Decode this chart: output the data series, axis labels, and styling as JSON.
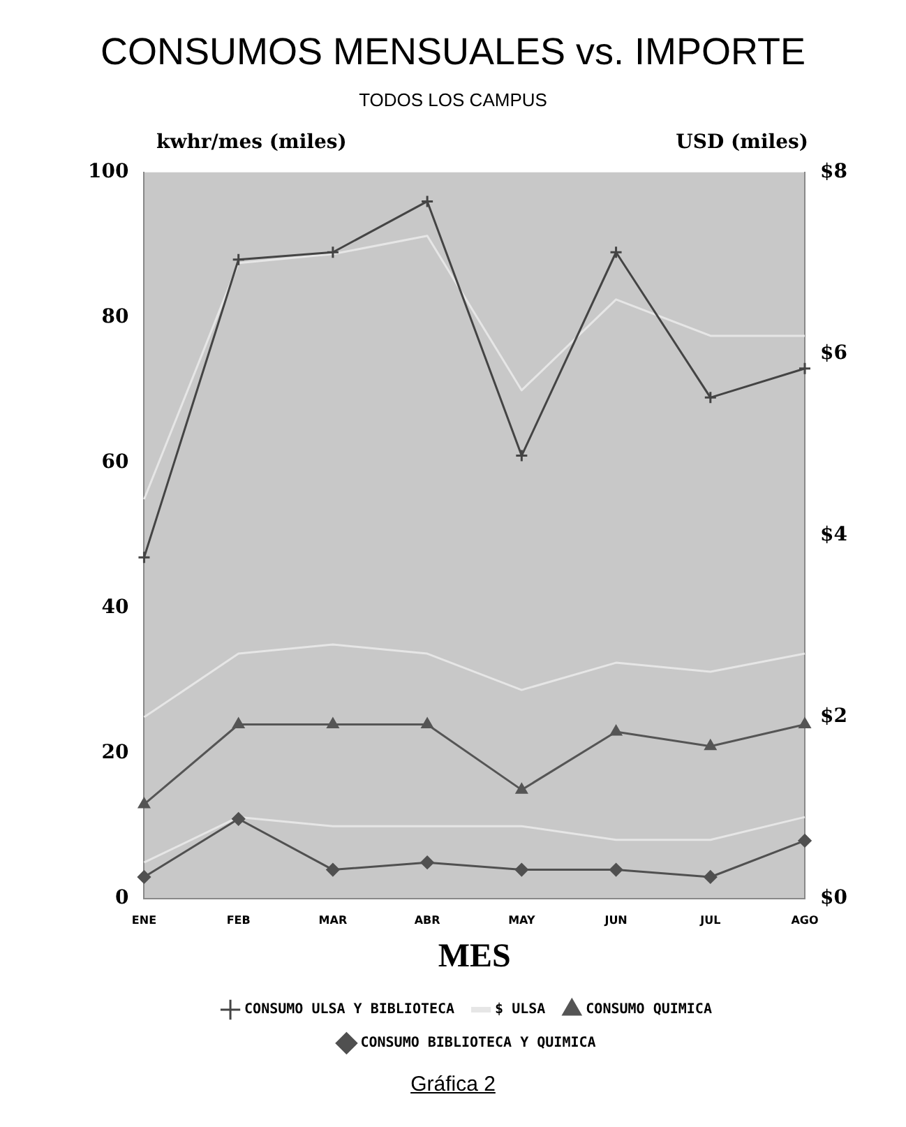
{
  "chart_data": {
    "type": "line",
    "title": "CONSUMOS MENSUALES vs. IMPORTE",
    "subtitle": "TODOS LOS CAMPUS",
    "xlabel": "MES",
    "ylabel": "kwhr/mes (miles)",
    "y2label": "USD (miles)",
    "categories": [
      "ENE",
      "FEB",
      "MAR",
      "ABR",
      "MAY",
      "JUN",
      "JUL",
      "AGO"
    ],
    "series": [
      {
        "name": "CONSUMO ULSA Y BIBLIOTECA",
        "color": "#444444",
        "marker": "cross",
        "values": [
          47,
          88,
          89,
          96,
          61,
          89,
          69,
          73
        ]
      },
      {
        "name": "$ ULSA",
        "color": "#e6e6e6",
        "marker": "none",
        "axis": "y2",
        "values": [
          4.4,
          7.0,
          7.1,
          7.3,
          5.6,
          6.6,
          6.2,
          6.2
        ]
      },
      {
        "name": "CONSUMO QUIMICA",
        "color": "#555555",
        "marker": "triangle",
        "values": [
          13,
          24,
          24,
          24,
          15,
          23,
          21,
          24
        ]
      },
      {
        "name": "CONSUMO BIBLIOTECA Y QUIMICA",
        "color": "#505050",
        "marker": "diamond",
        "values": [
          3,
          11,
          4,
          5,
          4,
          4,
          3,
          8
        ]
      },
      {
        "color": "#e6e6e6",
        "marker": "none",
        "axis": "y2",
        "values": [
          2.0,
          2.7,
          2.8,
          2.7,
          2.3,
          2.6,
          2.5,
          2.7
        ]
      },
      {
        "color": "#e6e6e6",
        "marker": "none",
        "axis": "y2",
        "values": [
          0.4,
          0.9,
          0.8,
          0.8,
          0.8,
          0.65,
          0.65,
          0.9
        ]
      }
    ],
    "ylim": [
      0,
      100
    ],
    "yticks": [
      0,
      20,
      40,
      60,
      80,
      100
    ],
    "y2lim": [
      0,
      8
    ],
    "y2ticks": [
      {
        "value": 0,
        "label": "$0"
      },
      {
        "value": 2,
        "label": "$2"
      },
      {
        "value": 4,
        "label": "$4"
      },
      {
        "value": 6,
        "label": "$6"
      },
      {
        "value": 8,
        "label": "$8"
      }
    ],
    "grid": false,
    "legend": "bottom",
    "annotations": [
      "Gráfica 2"
    ]
  }
}
